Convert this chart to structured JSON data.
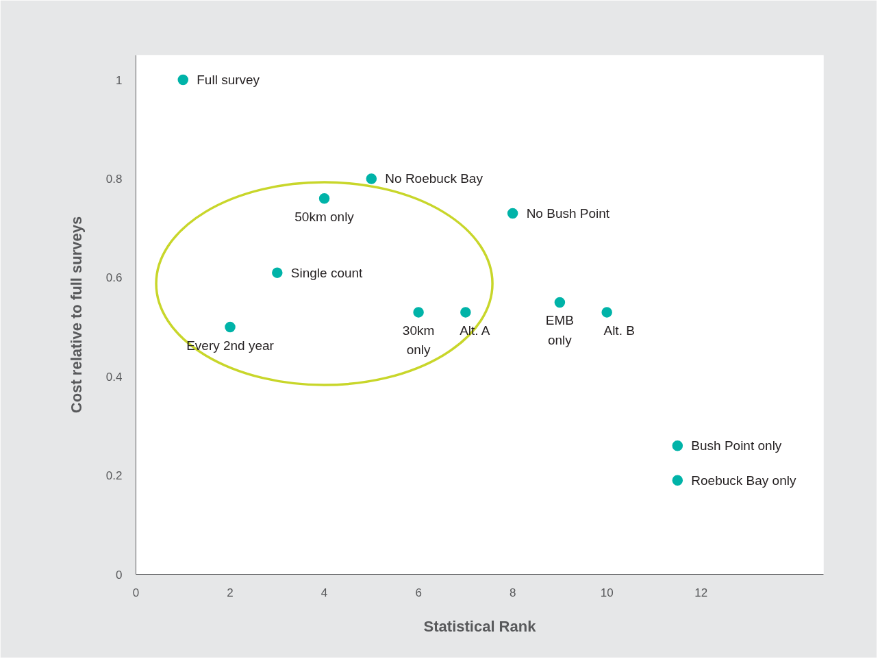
{
  "chart_data": {
    "type": "scatter",
    "xlabel": "Statistical Rank",
    "ylabel": "Cost relative to full surveys",
    "x": [
      1,
      2,
      3,
      4,
      5,
      6,
      7,
      8,
      9,
      10,
      11.5,
      11.5
    ],
    "values": [
      1.0,
      0.5,
      0.61,
      0.76,
      0.8,
      0.53,
      0.53,
      0.73,
      0.55,
      0.53,
      0.26,
      0.19
    ],
    "color": "#00b3a8",
    "marker": "circle",
    "grid": false,
    "xlim": [
      0,
      14.6
    ],
    "xticks": [
      0,
      2,
      4,
      6,
      8,
      10,
      12
    ],
    "ylim": [
      0,
      1.05
    ],
    "yticks": [
      0,
      {
        "value": 0.2,
        "label": "0.2"
      },
      {
        "value": 0.4,
        "label": "0.4"
      },
      {
        "value": 0.6,
        "label": "0.6"
      },
      {
        "value": 0.8,
        "label": "0.8"
      },
      1
    ],
    "annotations": [
      {
        "text": "Full survey",
        "x": 1,
        "y": 1.0
      },
      {
        "text": "Every 2nd year",
        "x": 2,
        "y": 0.5
      },
      {
        "text": "Single count",
        "x": 3,
        "y": 0.61
      },
      {
        "text": "50km only",
        "x": 4,
        "y": 0.76
      },
      {
        "text": "No Roebuck Bay",
        "x": 5,
        "y": 0.8
      },
      {
        "text": "30km\nonly",
        "x": 6,
        "y": 0.53
      },
      {
        "text": "Alt. A",
        "x": 7,
        "y": 0.53
      },
      {
        "text": "No Bush Point",
        "x": 8,
        "y": 0.73
      },
      {
        "text": "EMB\nonly",
        "x": 9,
        "y": 0.55
      },
      {
        "text": "Alt. B",
        "x": 10,
        "y": 0.53
      },
      {
        "text": "Bush Point only",
        "x": 11.5,
        "y": 0.26
      },
      {
        "text": "Roebuck Bay only",
        "x": 11.5,
        "y": 0.19
      }
    ]
  }
}
